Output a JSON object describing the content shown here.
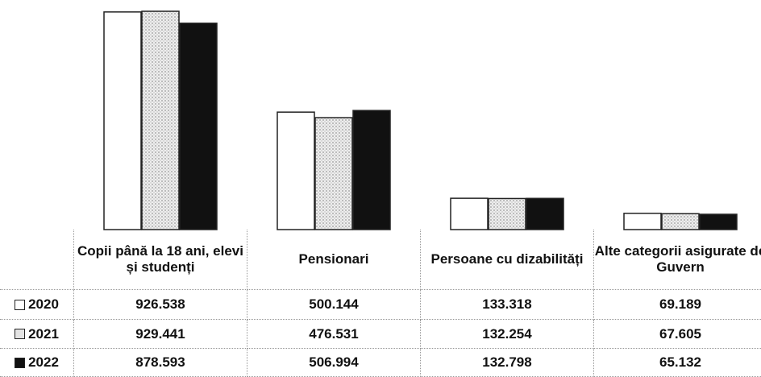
{
  "chart_data": {
    "type": "bar",
    "categories": [
      "Copii până la 18 ani, elevi și studenți",
      "Pensionari",
      "Persoane cu dizabilități",
      "Alte categorii asigurate de Guvern"
    ],
    "series": [
      {
        "name": "2020",
        "color": "#ffffff",
        "values": [
          926538,
          500144,
          133318,
          69189
        ],
        "value_labels": [
          "926.538",
          "500.144",
          "133.318",
          "69.189"
        ]
      },
      {
        "name": "2021",
        "color": "#d9d9d9",
        "values": [
          929441,
          476531,
          132254,
          67605
        ],
        "value_labels": [
          "929.441",
          "476.531",
          "132.254",
          "67.605"
        ]
      },
      {
        "name": "2022",
        "color": "#111111",
        "values": [
          878593,
          506994,
          132798,
          65132
        ],
        "value_labels": [
          "878.593",
          "506.994",
          "132.798",
          "65.132"
        ]
      }
    ]
  }
}
